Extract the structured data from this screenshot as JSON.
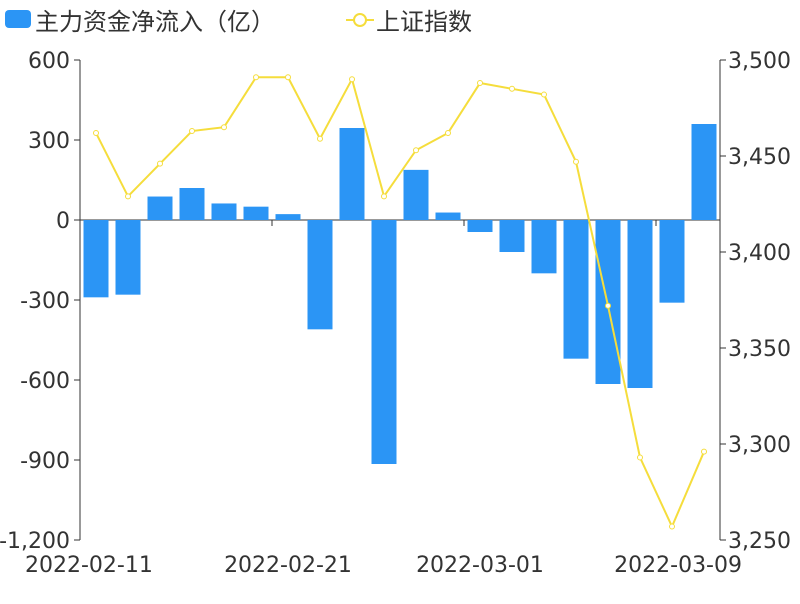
{
  "chart_data": {
    "type": "bar",
    "legend": {
      "position": "top-left",
      "items": [
        {
          "label": "主力资金净流入（亿）",
          "kind": "bar",
          "color": "#2b95f5"
        },
        {
          "label": "上证指数",
          "kind": "line",
          "color": "#f5dd3c"
        }
      ]
    },
    "x_ticks": [
      "2022-02-11",
      "2022-02-21",
      "2022-03-01",
      "2022-03-09"
    ],
    "y_left": {
      "min": -1200,
      "max": 600,
      "ticks": [
        "600",
        "300",
        "0",
        "-300",
        "-600",
        "-900",
        "-1,200"
      ]
    },
    "y_right": {
      "min": 3250,
      "max": 3500,
      "ticks": [
        "3,500",
        "3,450",
        "3,400",
        "3,350",
        "3,300",
        "3,250"
      ]
    },
    "grid": false,
    "series": [
      {
        "name": "主力资金净流入（亿）",
        "type": "bar",
        "axis": "left",
        "color": "#2b95f5",
        "values": [
          -290,
          -280,
          88,
          120,
          62,
          50,
          22,
          -410,
          345,
          -915,
          188,
          28,
          -45,
          -120,
          -200,
          -520,
          -615,
          -630,
          -310,
          360
        ]
      },
      {
        "name": "上证指数",
        "type": "line",
        "axis": "right",
        "color": "#f5dd3c",
        "values": [
          3462,
          3429,
          3446,
          3463,
          3465,
          3491,
          3491,
          3459,
          3490,
          3429,
          3453,
          3462,
          3488,
          3485,
          3482,
          3447,
          3372,
          3293,
          3257,
          3296
        ]
      }
    ]
  }
}
